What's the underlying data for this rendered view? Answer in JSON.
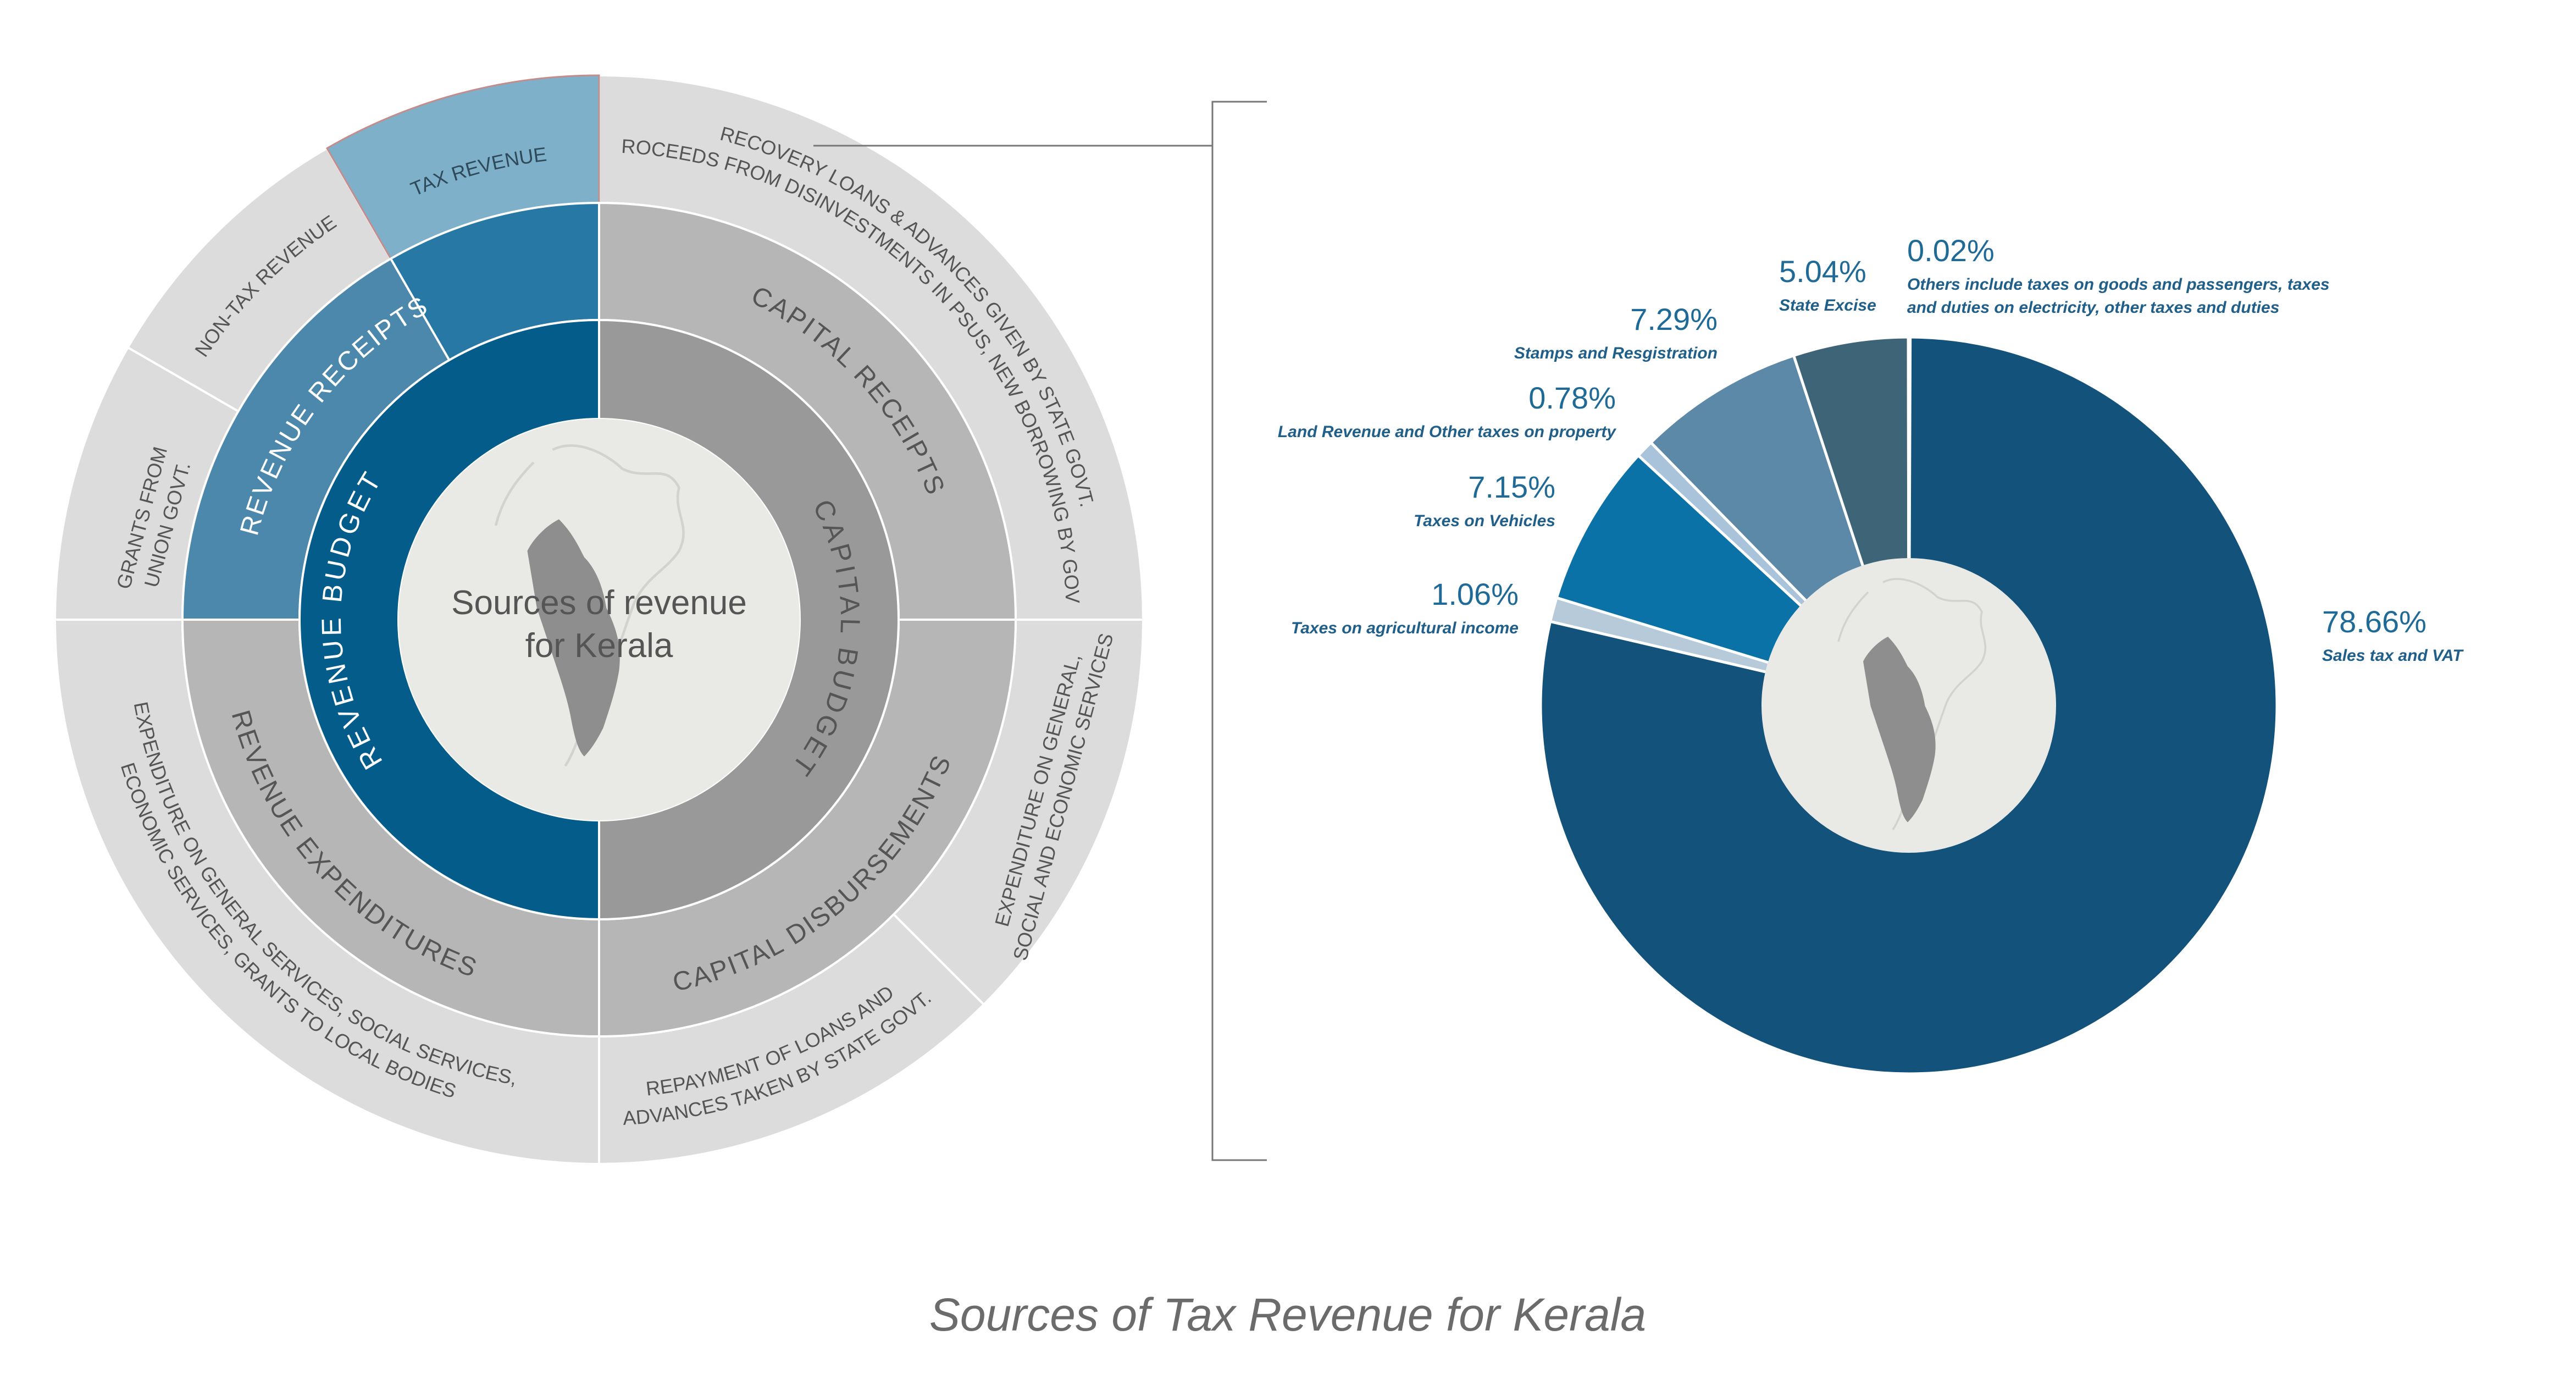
{
  "center_title": [
    "Sources of revenue",
    "for Kerala"
  ],
  "caption": "Sources of Tax Revenue for Kerala",
  "colors": {
    "revenue_budget": "#035c8a",
    "revenue_receipts": "#2778a4",
    "revenue_receipts_light": "#4c88ac",
    "tax_revenue": "#7fb0c9",
    "capital_budget": "#999999",
    "ring2_gray": "#b6b6b6",
    "ring3_gray": "#dcdcdc",
    "center": "#e9e9e6",
    "map": "#8e8e8e"
  },
  "sunburst": {
    "inner": [
      {
        "label": "REVENUE BUDGET"
      },
      {
        "label": "CAPITAL BUDGET"
      }
    ],
    "middle": [
      {
        "label": "REVENUE RECEIPTS"
      },
      {
        "label": "CAPITAL RECEIPTS"
      },
      {
        "label": "CAPITAL DISBURSEMENTS"
      },
      {
        "label": "REVENUE EXPENDITURES"
      }
    ],
    "outer": [
      {
        "label": "TAX REVENUE"
      },
      {
        "label": "NON-TAX REVENUE"
      },
      {
        "lines": [
          "GRANTS FROM",
          "UNION GOVT."
        ]
      },
      {
        "lines": [
          "RECOVERY LOANS & ADVANCES GIVEN BY STATE GOVT.",
          "PROCEEDS FROM DISINVESTMENTS IN PSUs, NEW BORROWING BY GOVT."
        ]
      },
      {
        "lines": [
          "EXPENDITURE ON GENERAL,",
          "SOCIAL AND ECONOMIC SERVICES"
        ]
      },
      {
        "lines": [
          "REPAYMENT OF LOANS AND",
          "ADVANCES TAKEN BY STATE GOVT."
        ]
      },
      {
        "lines": [
          "EXPENDITURE ON GENERAL SERVICES, SOCIAL SERVICES,",
          "ECONOMIC SERVICES, GRANTS TO LOCAL BODIES"
        ]
      }
    ]
  },
  "chart_data": {
    "type": "pie",
    "title": "Sources of Tax Revenue for Kerala",
    "series": [
      {
        "name": "Sales tax and VAT",
        "value": 78.66,
        "label": "78.66%",
        "color": "#13527b"
      },
      {
        "name": "Taxes on agricultural income",
        "value": 1.06,
        "label": "1.06%",
        "color": "#b6cad9"
      },
      {
        "name": "Taxes on Vehicles",
        "value": 7.15,
        "label": "7.15%",
        "color": "#0b72a8"
      },
      {
        "name": "Land Revenue and Other taxes on property",
        "value": 0.78,
        "label": "0.78%",
        "color": "#a9c3da"
      },
      {
        "name": "Stamps and Resgistration",
        "value": 7.29,
        "label": "7.29%",
        "color": "#5c89a8"
      },
      {
        "name": "State Excise",
        "value": 5.04,
        "label": "5.04%",
        "color": "#3e6478"
      },
      {
        "name": "Others include taxes on goods and passengers, taxes and duties on electricity, other taxes and duties",
        "lines": [
          "Others include taxes on goods and passengers, taxes",
          "and duties on electricity, other taxes and duties"
        ],
        "value": 0.02,
        "label": "0.02%",
        "color": "#c9d7e2"
      }
    ]
  }
}
